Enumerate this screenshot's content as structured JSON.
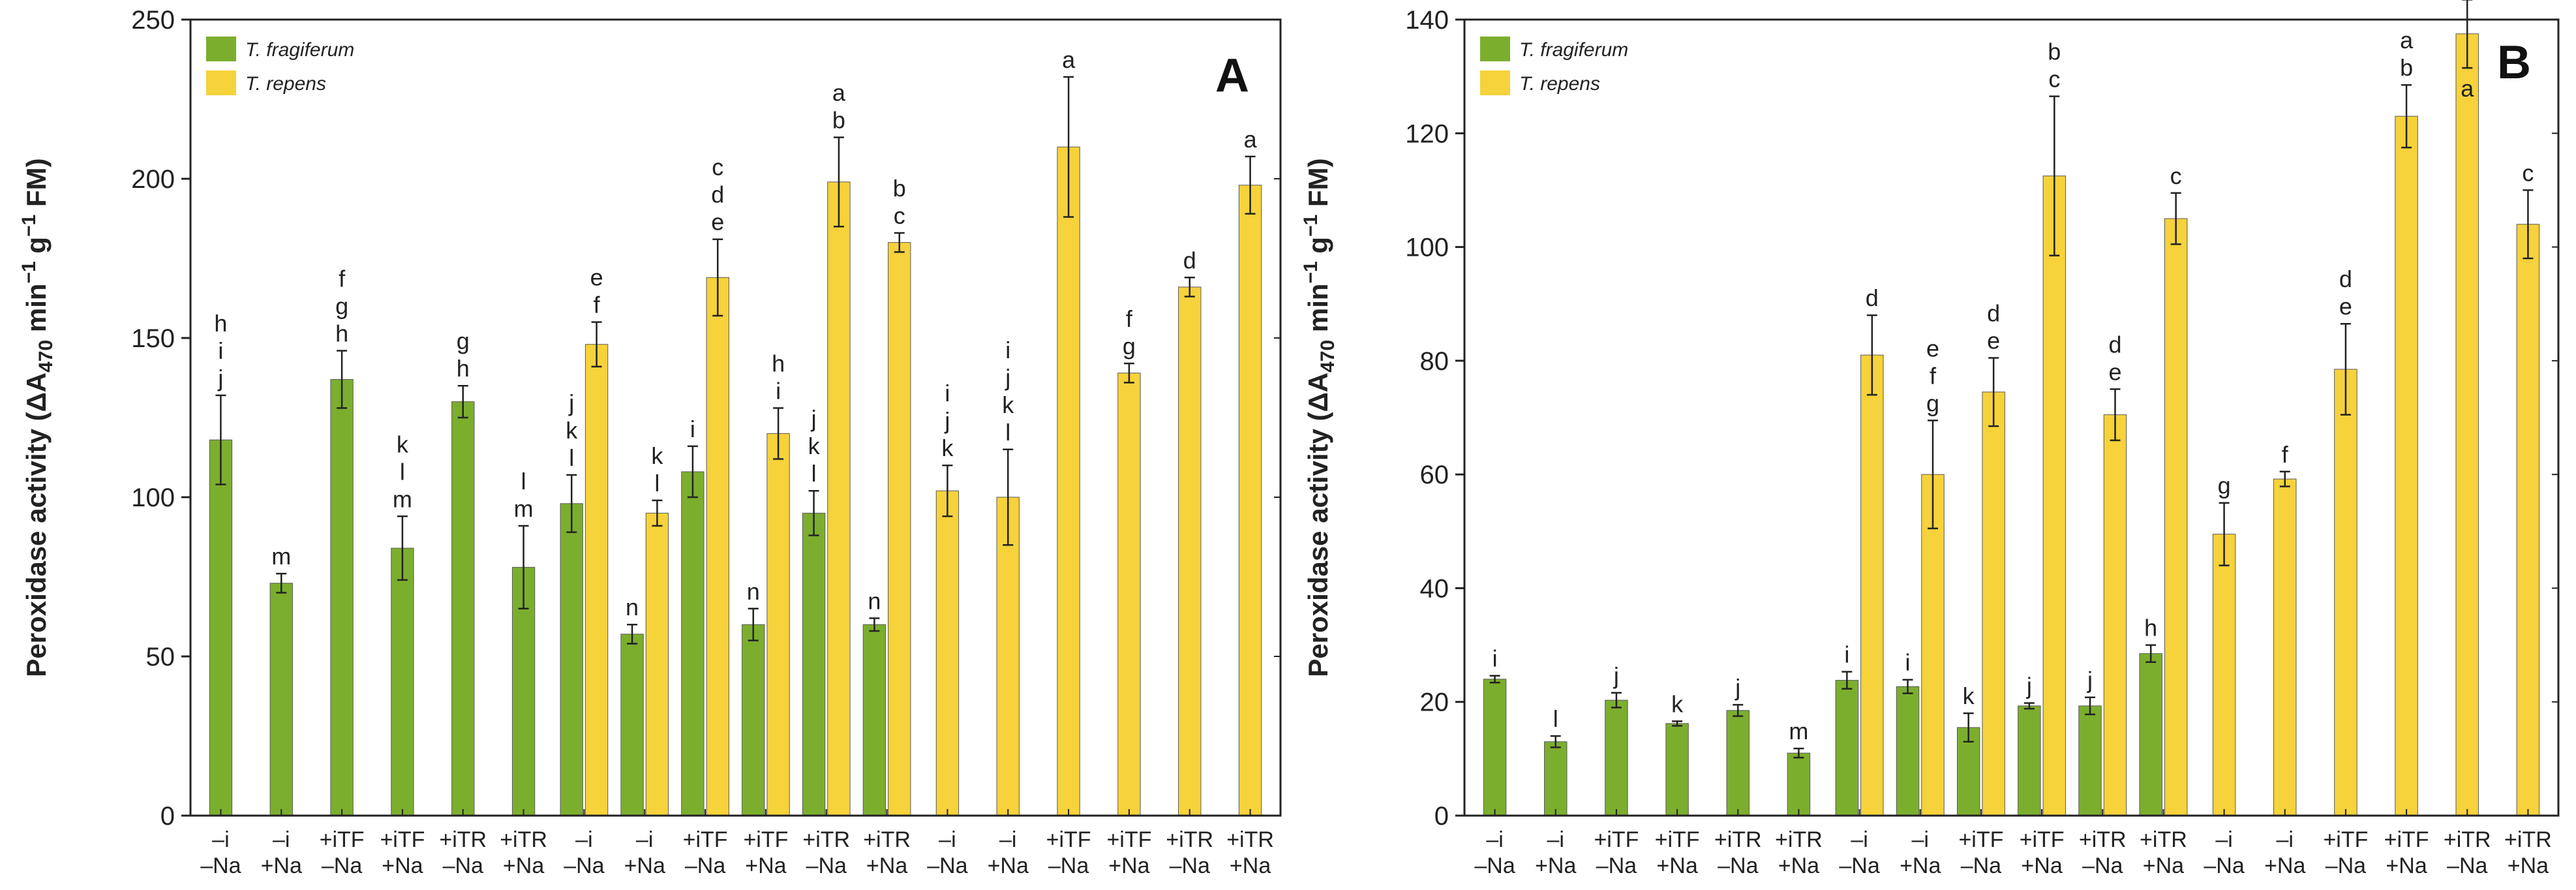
{
  "figure": {
    "y_axis_label_prefix": "Peroxidase activity",
    "y_axis_label_units": "(ΔA470 min−1 g−1 FM)",
    "legend_labels": [
      "T. fragiferum",
      "T. repens"
    ],
    "colors": {
      "fragiferum": "#7cae2e",
      "repens": "#f6d23b",
      "axis": "#222222"
    }
  },
  "chart_data": [
    {
      "type": "bar",
      "panel": "A",
      "ylim": [
        0,
        250
      ],
      "yticks": [
        0,
        50,
        100,
        150,
        200,
        250
      ],
      "groups": [
        {
          "top": "–i",
          "bottom": "–Na",
          "bars": [
            {
              "series": "T. fragiferum",
              "value": 118,
              "error": 14,
              "letters": [
                "h",
                "i",
                "j"
              ]
            }
          ]
        },
        {
          "top": "–i",
          "bottom": "+Na",
          "bars": [
            {
              "series": "T. fragiferum",
              "value": 73,
              "error": 3,
              "letters": [
                "m"
              ]
            }
          ]
        },
        {
          "top": "+iTF",
          "bottom": "–Na",
          "bars": [
            {
              "series": "T. fragiferum",
              "value": 137,
              "error": 9,
              "letters": [
                "f",
                "g",
                "h"
              ]
            }
          ]
        },
        {
          "top": "+iTF",
          "bottom": "+Na",
          "bars": [
            {
              "series": "T. fragiferum",
              "value": 84,
              "error": 10,
              "letters": [
                "k",
                "l",
                "m"
              ]
            }
          ]
        },
        {
          "top": "+iTR",
          "bottom": "–Na",
          "bars": [
            {
              "series": "T. fragiferum",
              "value": 130,
              "error": 5,
              "letters": [
                "g",
                "h"
              ]
            }
          ]
        },
        {
          "top": "+iTR",
          "bottom": "+Na",
          "bars": [
            {
              "series": "T. fragiferum",
              "value": 78,
              "error": 13,
              "letters": [
                "l",
                "m"
              ]
            }
          ]
        },
        {
          "top": "–i",
          "bottom": "–Na",
          "bars": [
            {
              "series": "T. fragiferum",
              "value": 98,
              "error": 9,
              "letters": [
                "j",
                "k",
                "l"
              ]
            },
            {
              "series": "T. repens",
              "value": 148,
              "error": 7,
              "letters": [
                "e",
                "f"
              ]
            }
          ]
        },
        {
          "top": "–i",
          "bottom": "+Na",
          "bars": [
            {
              "series": "T. fragiferum",
              "value": 57,
              "error": 3,
              "letters": [
                "n"
              ]
            },
            {
              "series": "T. repens",
              "value": 95,
              "error": 4,
              "letters": [
                "k",
                "l"
              ]
            }
          ]
        },
        {
          "top": "+iTF",
          "bottom": "–Na",
          "bars": [
            {
              "series": "T. fragiferum",
              "value": 108,
              "error": 8,
              "letters": [
                "i"
              ]
            },
            {
              "series": "T. repens",
              "value": 169,
              "error": 12,
              "letters": [
                "c",
                "d",
                "e"
              ]
            }
          ]
        },
        {
          "top": "+iTF",
          "bottom": "+Na",
          "bars": [
            {
              "series": "T. fragiferum",
              "value": 60,
              "error": 5,
              "letters": [
                "n"
              ]
            },
            {
              "series": "T. repens",
              "value": 120,
              "error": 8,
              "letters": [
                "h",
                "i"
              ]
            }
          ]
        },
        {
          "top": "+iTR",
          "bottom": "–Na",
          "bars": [
            {
              "series": "T. fragiferum",
              "value": 95,
              "error": 7,
              "letters": [
                "j",
                "k",
                "l"
              ]
            },
            {
              "series": "T. repens",
              "value": 199,
              "error": 14,
              "letters": [
                "a",
                "b"
              ]
            }
          ]
        },
        {
          "top": "+iTR",
          "bottom": "+Na",
          "bars": [
            {
              "series": "T. fragiferum",
              "value": 60,
              "error": 2,
              "letters": [
                "n"
              ]
            },
            {
              "series": "T. repens",
              "value": 180,
              "error": 3,
              "letters": [
                "b",
                "c"
              ]
            }
          ]
        },
        {
          "top": "–i",
          "bottom": "–Na",
          "bars": [
            {
              "series": "T. repens",
              "value": 102,
              "error": 8,
              "letters": [
                "i",
                "j",
                "k"
              ]
            }
          ]
        },
        {
          "top": "–i",
          "bottom": "+Na",
          "bars": [
            {
              "series": "T. repens",
              "value": 100,
              "error": 15,
              "letters": [
                "i",
                "j",
                "k",
                "l"
              ]
            }
          ]
        },
        {
          "top": "+iTF",
          "bottom": "–Na",
          "bars": [
            {
              "series": "T. repens",
              "value": 210,
              "error": 22,
              "letters": [
                "a"
              ]
            }
          ]
        },
        {
          "top": "+iTF",
          "bottom": "+Na",
          "bars": [
            {
              "series": "T. repens",
              "value": 139,
              "error": 3,
              "letters": [
                "f",
                "g"
              ]
            }
          ]
        },
        {
          "top": "+iTR",
          "bottom": "–Na",
          "bars": [
            {
              "series": "T. repens",
              "value": 166,
              "error": 3,
              "letters": [
                "d"
              ]
            }
          ]
        },
        {
          "top": "+iTR",
          "bottom": "+Na",
          "bars": [
            {
              "series": "T. repens",
              "value": 198,
              "error": 9,
              "letters": [
                "a"
              ]
            }
          ]
        }
      ]
    },
    {
      "type": "bar",
      "panel": "B",
      "ylim": [
        0,
        140
      ],
      "yticks": [
        0,
        20,
        40,
        60,
        80,
        100,
        120,
        140
      ],
      "groups": [
        {
          "top": "–i",
          "bottom": "–Na",
          "bars": [
            {
              "series": "T. fragiferum",
              "value": 24,
              "error": 0.6,
              "letters": [
                "i"
              ]
            }
          ]
        },
        {
          "top": "–i",
          "bottom": "+Na",
          "bars": [
            {
              "series": "T. fragiferum",
              "value": 13,
              "error": 1.0,
              "letters": [
                "l"
              ]
            }
          ]
        },
        {
          "top": "+iTF",
          "bottom": "–Na",
          "bars": [
            {
              "series": "T. fragiferum",
              "value": 20.3,
              "error": 1.3,
              "letters": [
                "j"
              ]
            }
          ]
        },
        {
          "top": "+iTF",
          "bottom": "+Na",
          "bars": [
            {
              "series": "T. fragiferum",
              "value": 16.2,
              "error": 0.4,
              "letters": [
                "k"
              ]
            }
          ]
        },
        {
          "top": "+iTR",
          "bottom": "–Na",
          "bars": [
            {
              "series": "T. fragiferum",
              "value": 18.5,
              "error": 1.0,
              "letters": [
                "j"
              ]
            }
          ]
        },
        {
          "top": "+iTR",
          "bottom": "+Na",
          "bars": [
            {
              "series": "T. fragiferum",
              "value": 11,
              "error": 0.8,
              "letters": [
                "m"
              ]
            }
          ]
        },
        {
          "top": "–i",
          "bottom": "–Na",
          "bars": [
            {
              "series": "T. fragiferum",
              "value": 23.8,
              "error": 1.5,
              "letters": [
                "i"
              ]
            },
            {
              "series": "T. repens",
              "value": 81,
              "error": 7,
              "letters": [
                "d"
              ]
            }
          ]
        },
        {
          "top": "–i",
          "bottom": "+Na",
          "bars": [
            {
              "series": "T. fragiferum",
              "value": 22.7,
              "error": 1.2,
              "letters": [
                "i"
              ]
            },
            {
              "series": "T. repens",
              "value": 60,
              "error": 9.5,
              "letters": [
                "e",
                "f",
                "g"
              ]
            }
          ]
        },
        {
          "top": "+iTF",
          "bottom": "–Na",
          "bars": [
            {
              "series": "T. fragiferum",
              "value": 15.5,
              "error": 2.5,
              "letters": [
                "k"
              ]
            },
            {
              "series": "T. repens",
              "value": 74.5,
              "error": 6,
              "letters": [
                "d",
                "e"
              ]
            }
          ]
        },
        {
          "top": "+iTF",
          "bottom": "+Na",
          "bars": [
            {
              "series": "T. fragiferum",
              "value": 19.3,
              "error": 0.5,
              "letters": [
                "j"
              ]
            },
            {
              "series": "T. repens",
              "value": 112.5,
              "error": 14,
              "letters": [
                "b",
                "c"
              ]
            }
          ]
        },
        {
          "top": "+iTR",
          "bottom": "–Na",
          "bars": [
            {
              "series": "T. fragiferum",
              "value": 19.3,
              "error": 1.5,
              "letters": [
                "j"
              ]
            },
            {
              "series": "T. repens",
              "value": 70.5,
              "error": 4.5,
              "letters": [
                "d",
                "e"
              ]
            }
          ]
        },
        {
          "top": "+iTR",
          "bottom": "+Na",
          "bars": [
            {
              "series": "T. fragiferum",
              "value": 28.5,
              "error": 1.5,
              "letters": [
                "h"
              ]
            },
            {
              "series": "T. repens",
              "value": 105,
              "error": 4.5,
              "letters": [
                "c"
              ]
            }
          ]
        },
        {
          "top": "–i",
          "bottom": "–Na",
          "bars": [
            {
              "series": "T. repens",
              "value": 49.5,
              "error": 5.5,
              "letters": [
                "g"
              ]
            }
          ]
        },
        {
          "top": "–i",
          "bottom": "+Na",
          "bars": [
            {
              "series": "T. repens",
              "value": 59.2,
              "error": 1.3,
              "letters": [
                "f"
              ]
            }
          ]
        },
        {
          "top": "+iTF",
          "bottom": "–Na",
          "bars": [
            {
              "series": "T. repens",
              "value": 78.5,
              "error": 8,
              "letters": [
                "d",
                "e"
              ]
            }
          ]
        },
        {
          "top": "+iTF",
          "bottom": "+Na",
          "bars": [
            {
              "series": "T. repens",
              "value": 123,
              "error": 5.5,
              "letters": [
                "a",
                "b"
              ]
            }
          ]
        },
        {
          "top": "+iTR",
          "bottom": "–Na",
          "bars": [
            {
              "series": "T. repens",
              "value": 137.5,
              "error": 6,
              "letters": [
                "a"
              ],
              "letters_below": true
            }
          ]
        },
        {
          "top": "+iTR",
          "bottom": "+Na",
          "bars": [
            {
              "series": "T. repens",
              "value": 104,
              "error": 6,
              "letters": [
                "c"
              ]
            }
          ]
        }
      ]
    }
  ]
}
